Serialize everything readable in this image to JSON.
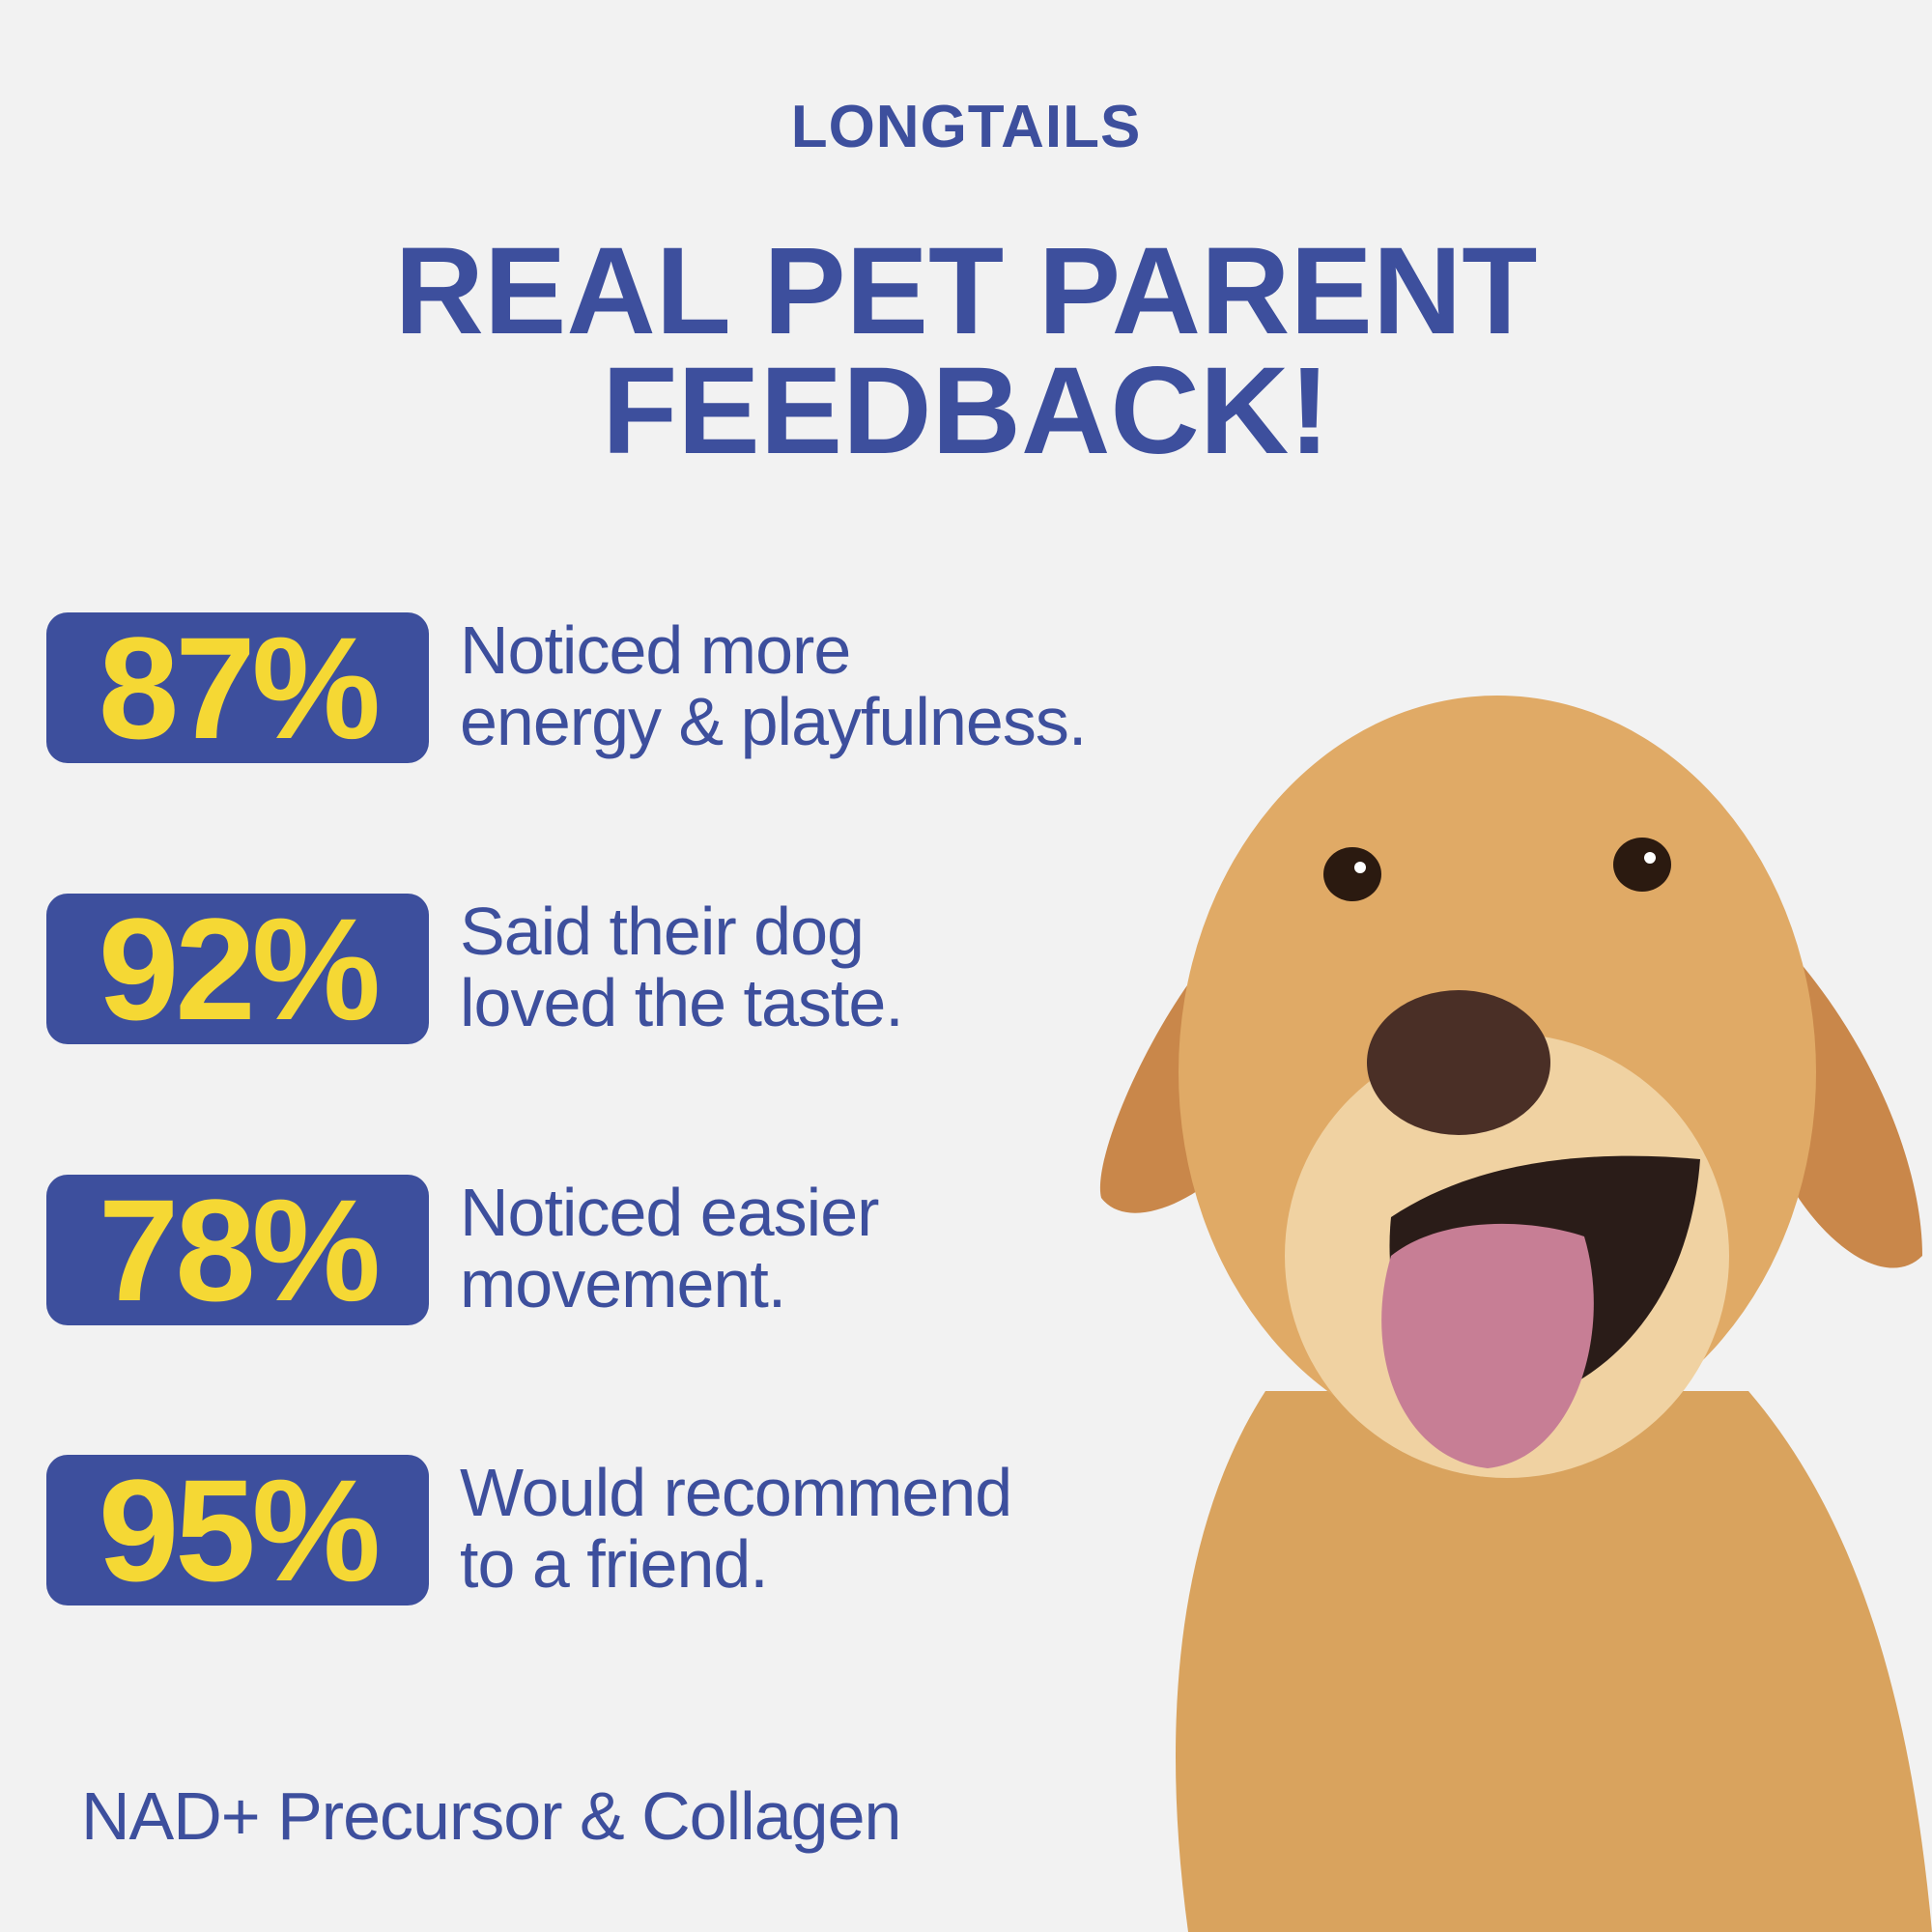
{
  "header": {
    "logo": "LONGTAILS",
    "title_line_1": "REAL PET PARENT",
    "title_line_2": "FEEDBACK!"
  },
  "stats": [
    {
      "percent": "87%",
      "line_1": "Noticed more",
      "line_2": "energy & playfulness."
    },
    {
      "percent": "92%",
      "line_1": "Said their dog",
      "line_2": "loved the taste."
    },
    {
      "percent": "78%",
      "line_1": "Noticed easier",
      "line_2": "movement."
    },
    {
      "percent": "95%",
      "line_1": "Would recommend",
      "line_2": "to a friend."
    }
  ],
  "footer": "NAD+ Precursor & Collagen"
}
